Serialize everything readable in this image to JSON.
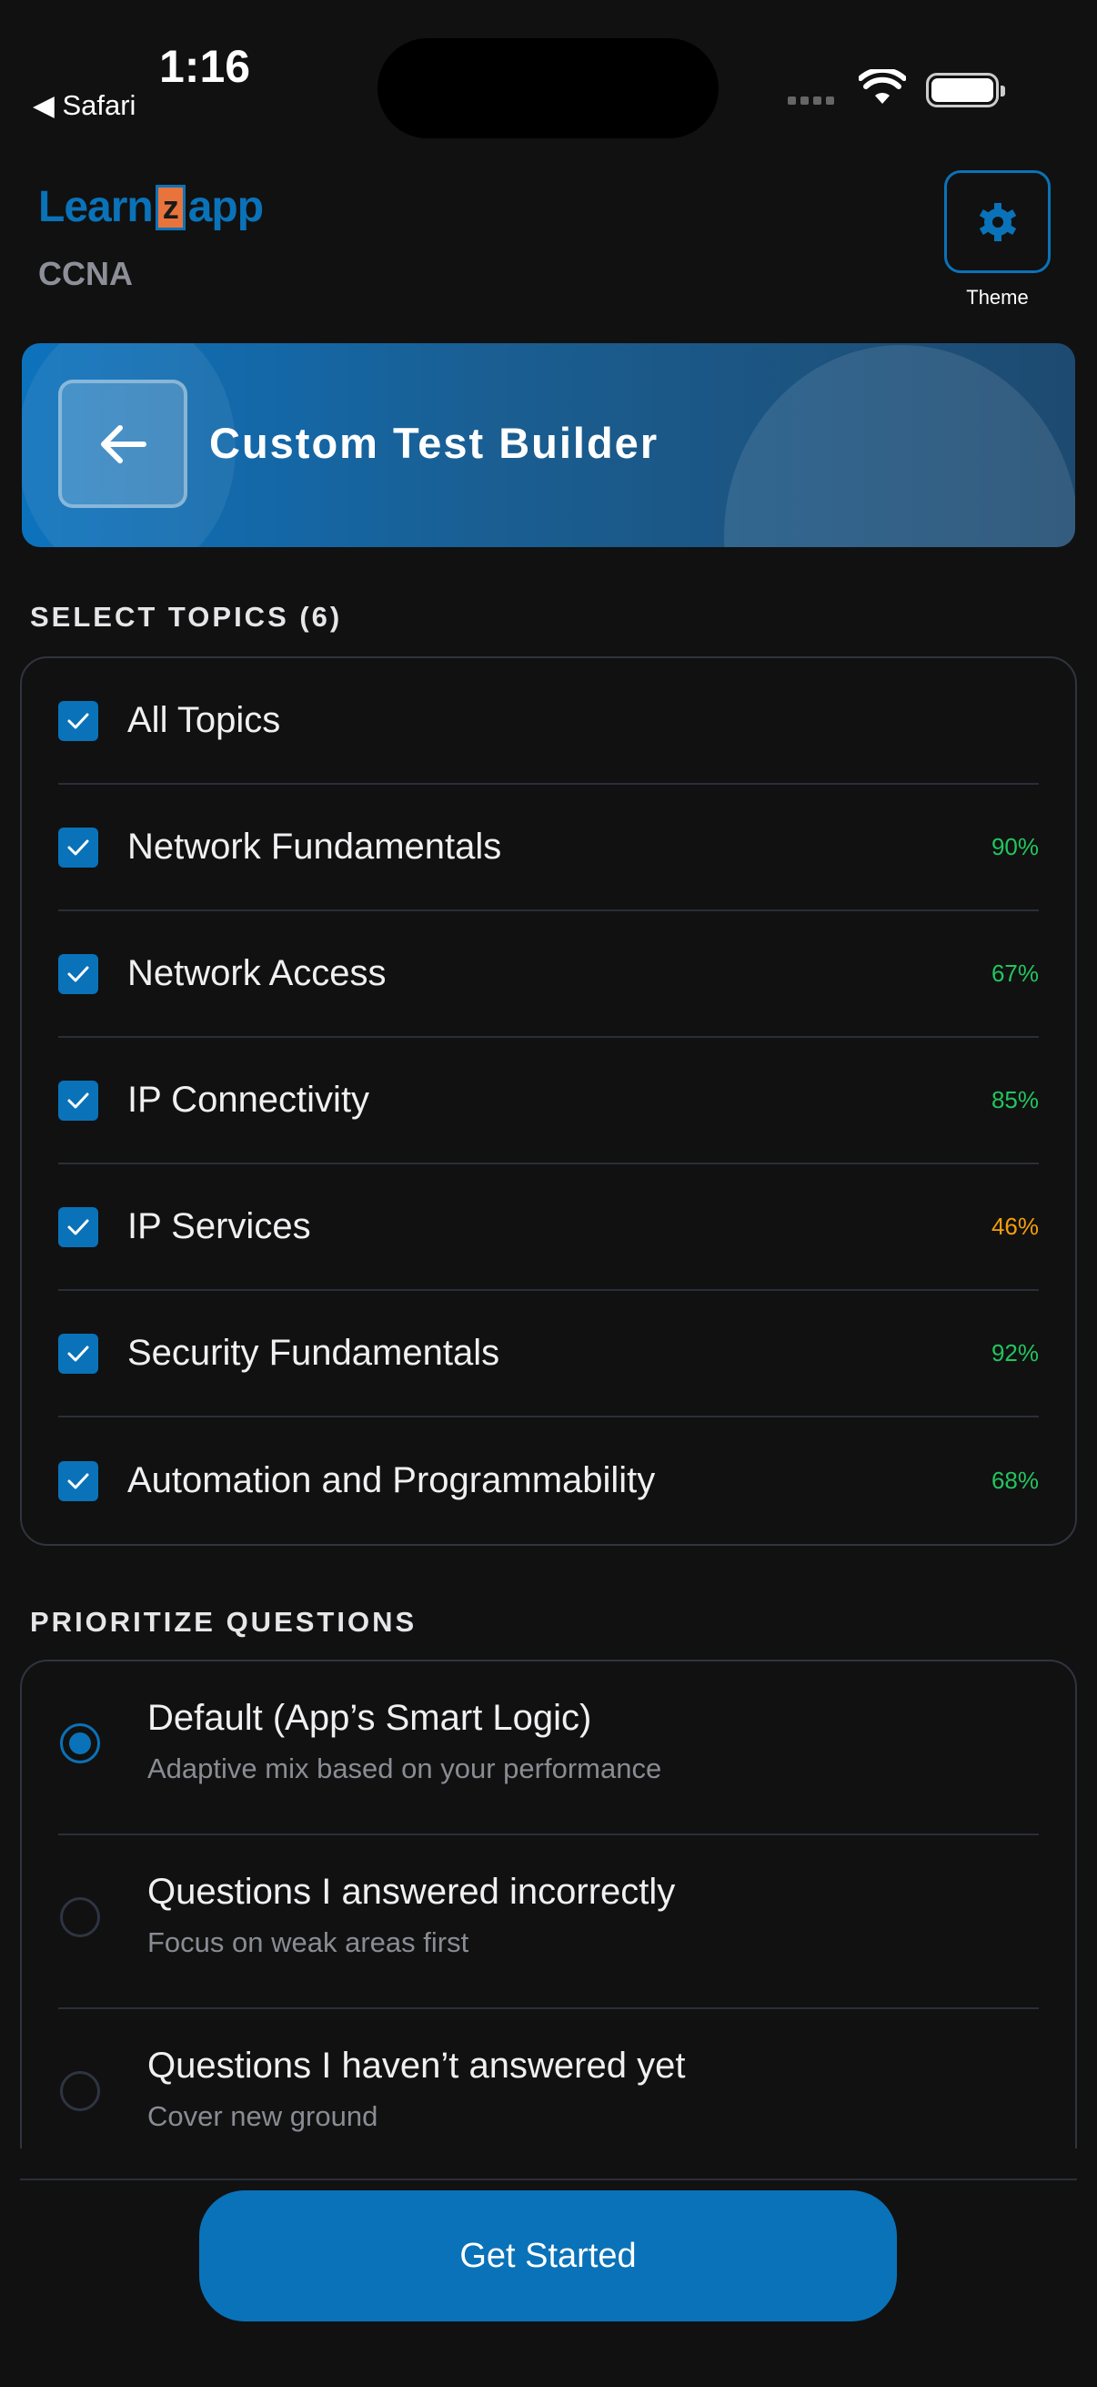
{
  "status_bar": {
    "time": "1:16",
    "back_app": "◀ Safari"
  },
  "header": {
    "logo_left": "Learn",
    "logo_z": "z",
    "logo_right": "app",
    "subtitle": "CCNA",
    "theme_label": "Theme"
  },
  "banner": {
    "title": "Custom Test Builder"
  },
  "topics": {
    "heading": "SELECT TOPICS (6)",
    "items": [
      {
        "label": "All Topics",
        "checked": true,
        "percent": ""
      },
      {
        "label": "Network Fundamentals",
        "checked": true,
        "percent": "90%",
        "color": "#22c55e"
      },
      {
        "label": "Network Access",
        "checked": true,
        "percent": "67%",
        "color": "#22c55e"
      },
      {
        "label": "IP Connectivity",
        "checked": true,
        "percent": "85%",
        "color": "#22c55e"
      },
      {
        "label": "IP Services",
        "checked": true,
        "percent": "46%",
        "color": "#f59e0b"
      },
      {
        "label": "Security Fundamentals",
        "checked": true,
        "percent": "92%",
        "color": "#22c55e"
      },
      {
        "label": "Automation and Programmability",
        "checked": true,
        "percent": "68%",
        "color": "#22c55e"
      }
    ]
  },
  "prioritize": {
    "heading": "PRIORITIZE QUESTIONS",
    "options": [
      {
        "title": "Default (App’s Smart Logic)",
        "subtitle": "Adaptive mix based on your performance",
        "selected": true
      },
      {
        "title": "Questions I answered incorrectly",
        "subtitle": "Focus on weak areas first",
        "selected": false
      },
      {
        "title": "Questions I haven’t answered yet",
        "subtitle": "Cover new ground",
        "selected": false
      }
    ]
  },
  "footer": {
    "start_label": "Get Started"
  },
  "colors": {
    "accent": "#0a72b8",
    "good": "#22c55e",
    "warn": "#f59e0b",
    "background": "#111111"
  }
}
